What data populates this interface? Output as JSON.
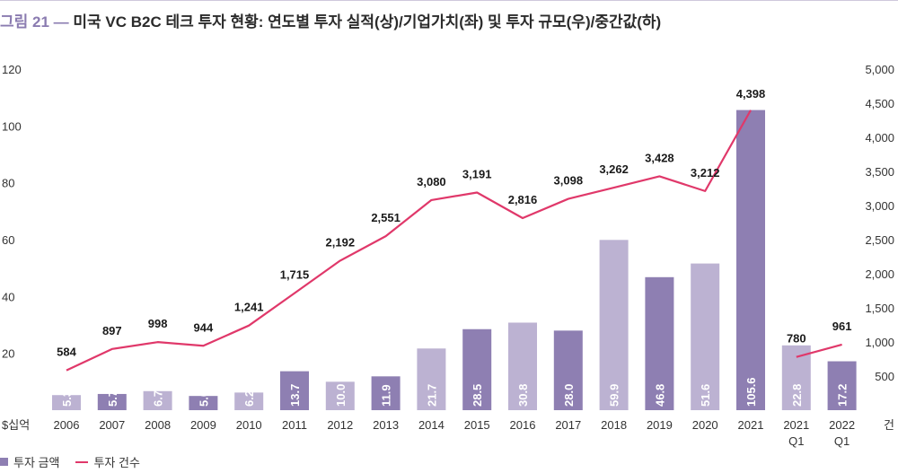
{
  "title": {
    "figure": "그림 21",
    "dash": "—",
    "text": "미국 VC B2C 테크 투자 현황: 연도별 투자 실적(상)/기업가치(좌) 및 투자 규모(우)/중간값(하)"
  },
  "colors": {
    "bar_dark": "#8e7fb2",
    "bar_light": "#bcb2d2",
    "line": "#e0386a",
    "label_dark_on_light": "#ffffff",
    "label_light": "#ffffff"
  },
  "legend": {
    "bar": "투자 금액",
    "line": "투자 건수"
  },
  "chart_data": {
    "type": "bar",
    "categories": [
      "2006",
      "2007",
      "2008",
      "2009",
      "2010",
      "2011",
      "2012",
      "2013",
      "2014",
      "2015",
      "2016",
      "2017",
      "2018",
      "2019",
      "2020",
      "2021",
      "2021\nQ1",
      "2022\nQ1"
    ],
    "series": [
      {
        "name": "투자 금액",
        "type": "bar",
        "axis": "left",
        "values": [
          5.3,
          5.7,
          6.7,
          5.0,
          6.2,
          13.7,
          10.0,
          11.9,
          21.7,
          28.5,
          30.8,
          28.0,
          59.9,
          46.8,
          51.6,
          105.6,
          22.8,
          17.2
        ],
        "shade": [
          "light",
          "dark",
          "light",
          "dark",
          "light",
          "dark",
          "light",
          "dark",
          "light",
          "dark",
          "light",
          "dark",
          "light",
          "dark",
          "light",
          "dark",
          "light",
          "dark"
        ]
      },
      {
        "name": "투자 건수",
        "type": "line",
        "axis": "right",
        "values": [
          584,
          897,
          998,
          944,
          1241,
          1715,
          2192,
          2551,
          3080,
          3191,
          2816,
          3098,
          3262,
          3428,
          3212,
          4398,
          780,
          961
        ],
        "labels": [
          "584",
          "897",
          "998",
          "944",
          "1,241",
          "1,715",
          "2,192",
          "2,551",
          "3,080",
          "3,191",
          "2,816",
          "3,098",
          "3,262",
          "3,428",
          "3,212",
          "4,398",
          "780",
          "961"
        ],
        "segments": [
          [
            0,
            15
          ],
          [
            16,
            17
          ]
        ]
      }
    ],
    "left_axis": {
      "unit": "$십억",
      "ylim": [
        0,
        120
      ],
      "ticks": [
        20,
        40,
        60,
        80,
        100,
        120
      ]
    },
    "right_axis": {
      "unit": "건",
      "ylim": [
        0,
        5000
      ],
      "ticks": [
        500,
        1000,
        1500,
        2000,
        2500,
        3000,
        3500,
        4000,
        4500,
        5000
      ],
      "tick_labels": [
        "500",
        "1,000",
        "1,500",
        "2,000",
        "2,500",
        "3,000",
        "3,500",
        "4,000",
        "4,500",
        "5,000"
      ]
    },
    "grid": false,
    "legend_position": "bottom-left"
  }
}
